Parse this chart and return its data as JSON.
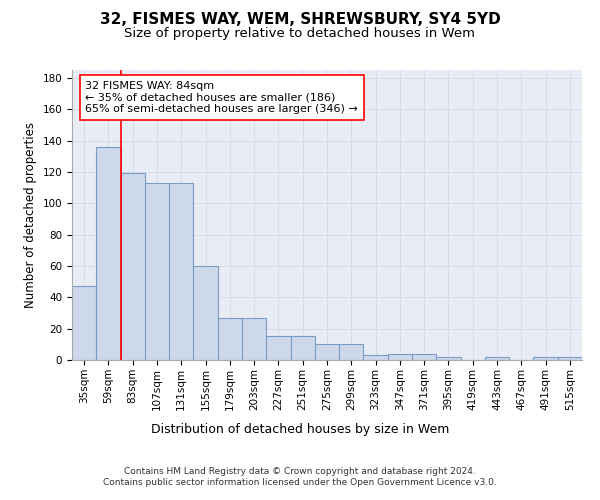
{
  "title1": "32, FISMES WAY, WEM, SHREWSBURY, SY4 5YD",
  "title2": "Size of property relative to detached houses in Wem",
  "xlabel": "Distribution of detached houses by size in Wem",
  "ylabel": "Number of detached properties",
  "categories": [
    "35sqm",
    "59sqm",
    "83sqm",
    "107sqm",
    "131sqm",
    "155sqm",
    "179sqm",
    "203sqm",
    "227sqm",
    "251sqm",
    "275sqm",
    "299sqm",
    "323sqm",
    "347sqm",
    "371sqm",
    "395sqm",
    "419sqm",
    "443sqm",
    "467sqm",
    "491sqm",
    "515sqm"
  ],
  "values": [
    47,
    136,
    119,
    113,
    113,
    60,
    27,
    27,
    15,
    15,
    10,
    10,
    3,
    4,
    4,
    2,
    0,
    2,
    0,
    2,
    2
  ],
  "bar_color": "#cdd8ea",
  "bar_edge_color": "#7a9cc4",
  "bar_edge_width": 0.8,
  "red_line_x": 1.5,
  "annotation_text": "32 FISMES WAY: 84sqm\n← 35% of detached houses are smaller (186)\n65% of semi-detached houses are larger (346) →",
  "annotation_box_color": "white",
  "annotation_box_edge_color": "red",
  "ylim": [
    0,
    185
  ],
  "yticks": [
    0,
    20,
    40,
    60,
    80,
    100,
    120,
    140,
    160,
    180
  ],
  "grid_color": "#d5dce8",
  "background_color": "#e8edf5",
  "footnote": "Contains HM Land Registry data © Crown copyright and database right 2024.\nContains public sector information licensed under the Open Government Licence v3.0.",
  "title1_fontsize": 11,
  "title2_fontsize": 9.5,
  "xlabel_fontsize": 9,
  "ylabel_fontsize": 8.5,
  "tick_fontsize": 7.5,
  "annotation_fontsize": 8,
  "footnote_fontsize": 6.5
}
